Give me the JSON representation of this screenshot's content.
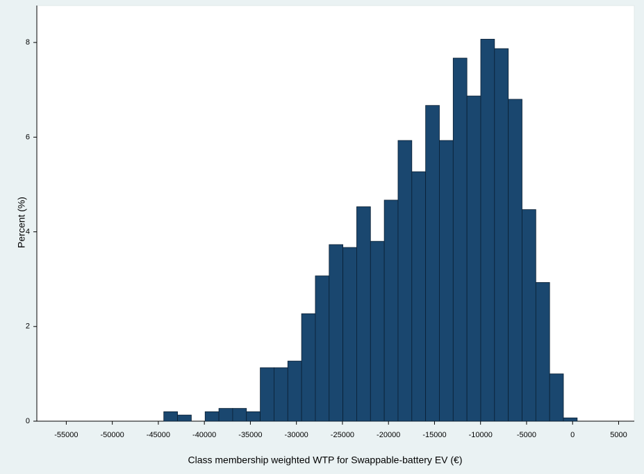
{
  "chart_data": {
    "type": "histogram",
    "xlabel": "Class membership weighted WTP for Swappable-battery EV (€)",
    "ylabel": "Percent (%)",
    "color": "#1a476f",
    "bins": [
      -44410,
      -42913,
      -41416,
      -39919,
      -38422,
      -36925,
      -35428,
      -33931,
      -32434,
      -30937,
      -29440,
      -27943,
      -26446,
      -24949,
      -23452,
      -21955,
      -20458,
      -18961,
      -17464,
      -15967,
      -14470,
      -12973,
      -11476,
      -9979,
      -8482,
      -6985,
      -5488,
      -3991,
      -2494,
      -997,
      500
    ],
    "values": [
      0.2,
      0.13,
      0,
      0.2,
      0.27,
      0.27,
      0.2,
      1.13,
      1.13,
      1.27,
      2.27,
      3.07,
      3.73,
      3.67,
      4.53,
      3.8,
      4.67,
      5.93,
      5.27,
      6.67,
      5.93,
      7.67,
      6.87,
      8.07,
      7.87,
      6.8,
      4.47,
      2.93,
      1.0,
      0.07
    ],
    "xlim": [
      -58200,
      6700
    ],
    "ylim": [
      0,
      8.78
    ],
    "xticks": [
      -55000,
      -50000,
      -45000,
      -40000,
      -35000,
      -30000,
      -25000,
      -20000,
      -15000,
      -10000,
      -5000,
      0,
      5000
    ],
    "yticks": [
      0,
      2,
      4,
      6,
      8
    ]
  }
}
